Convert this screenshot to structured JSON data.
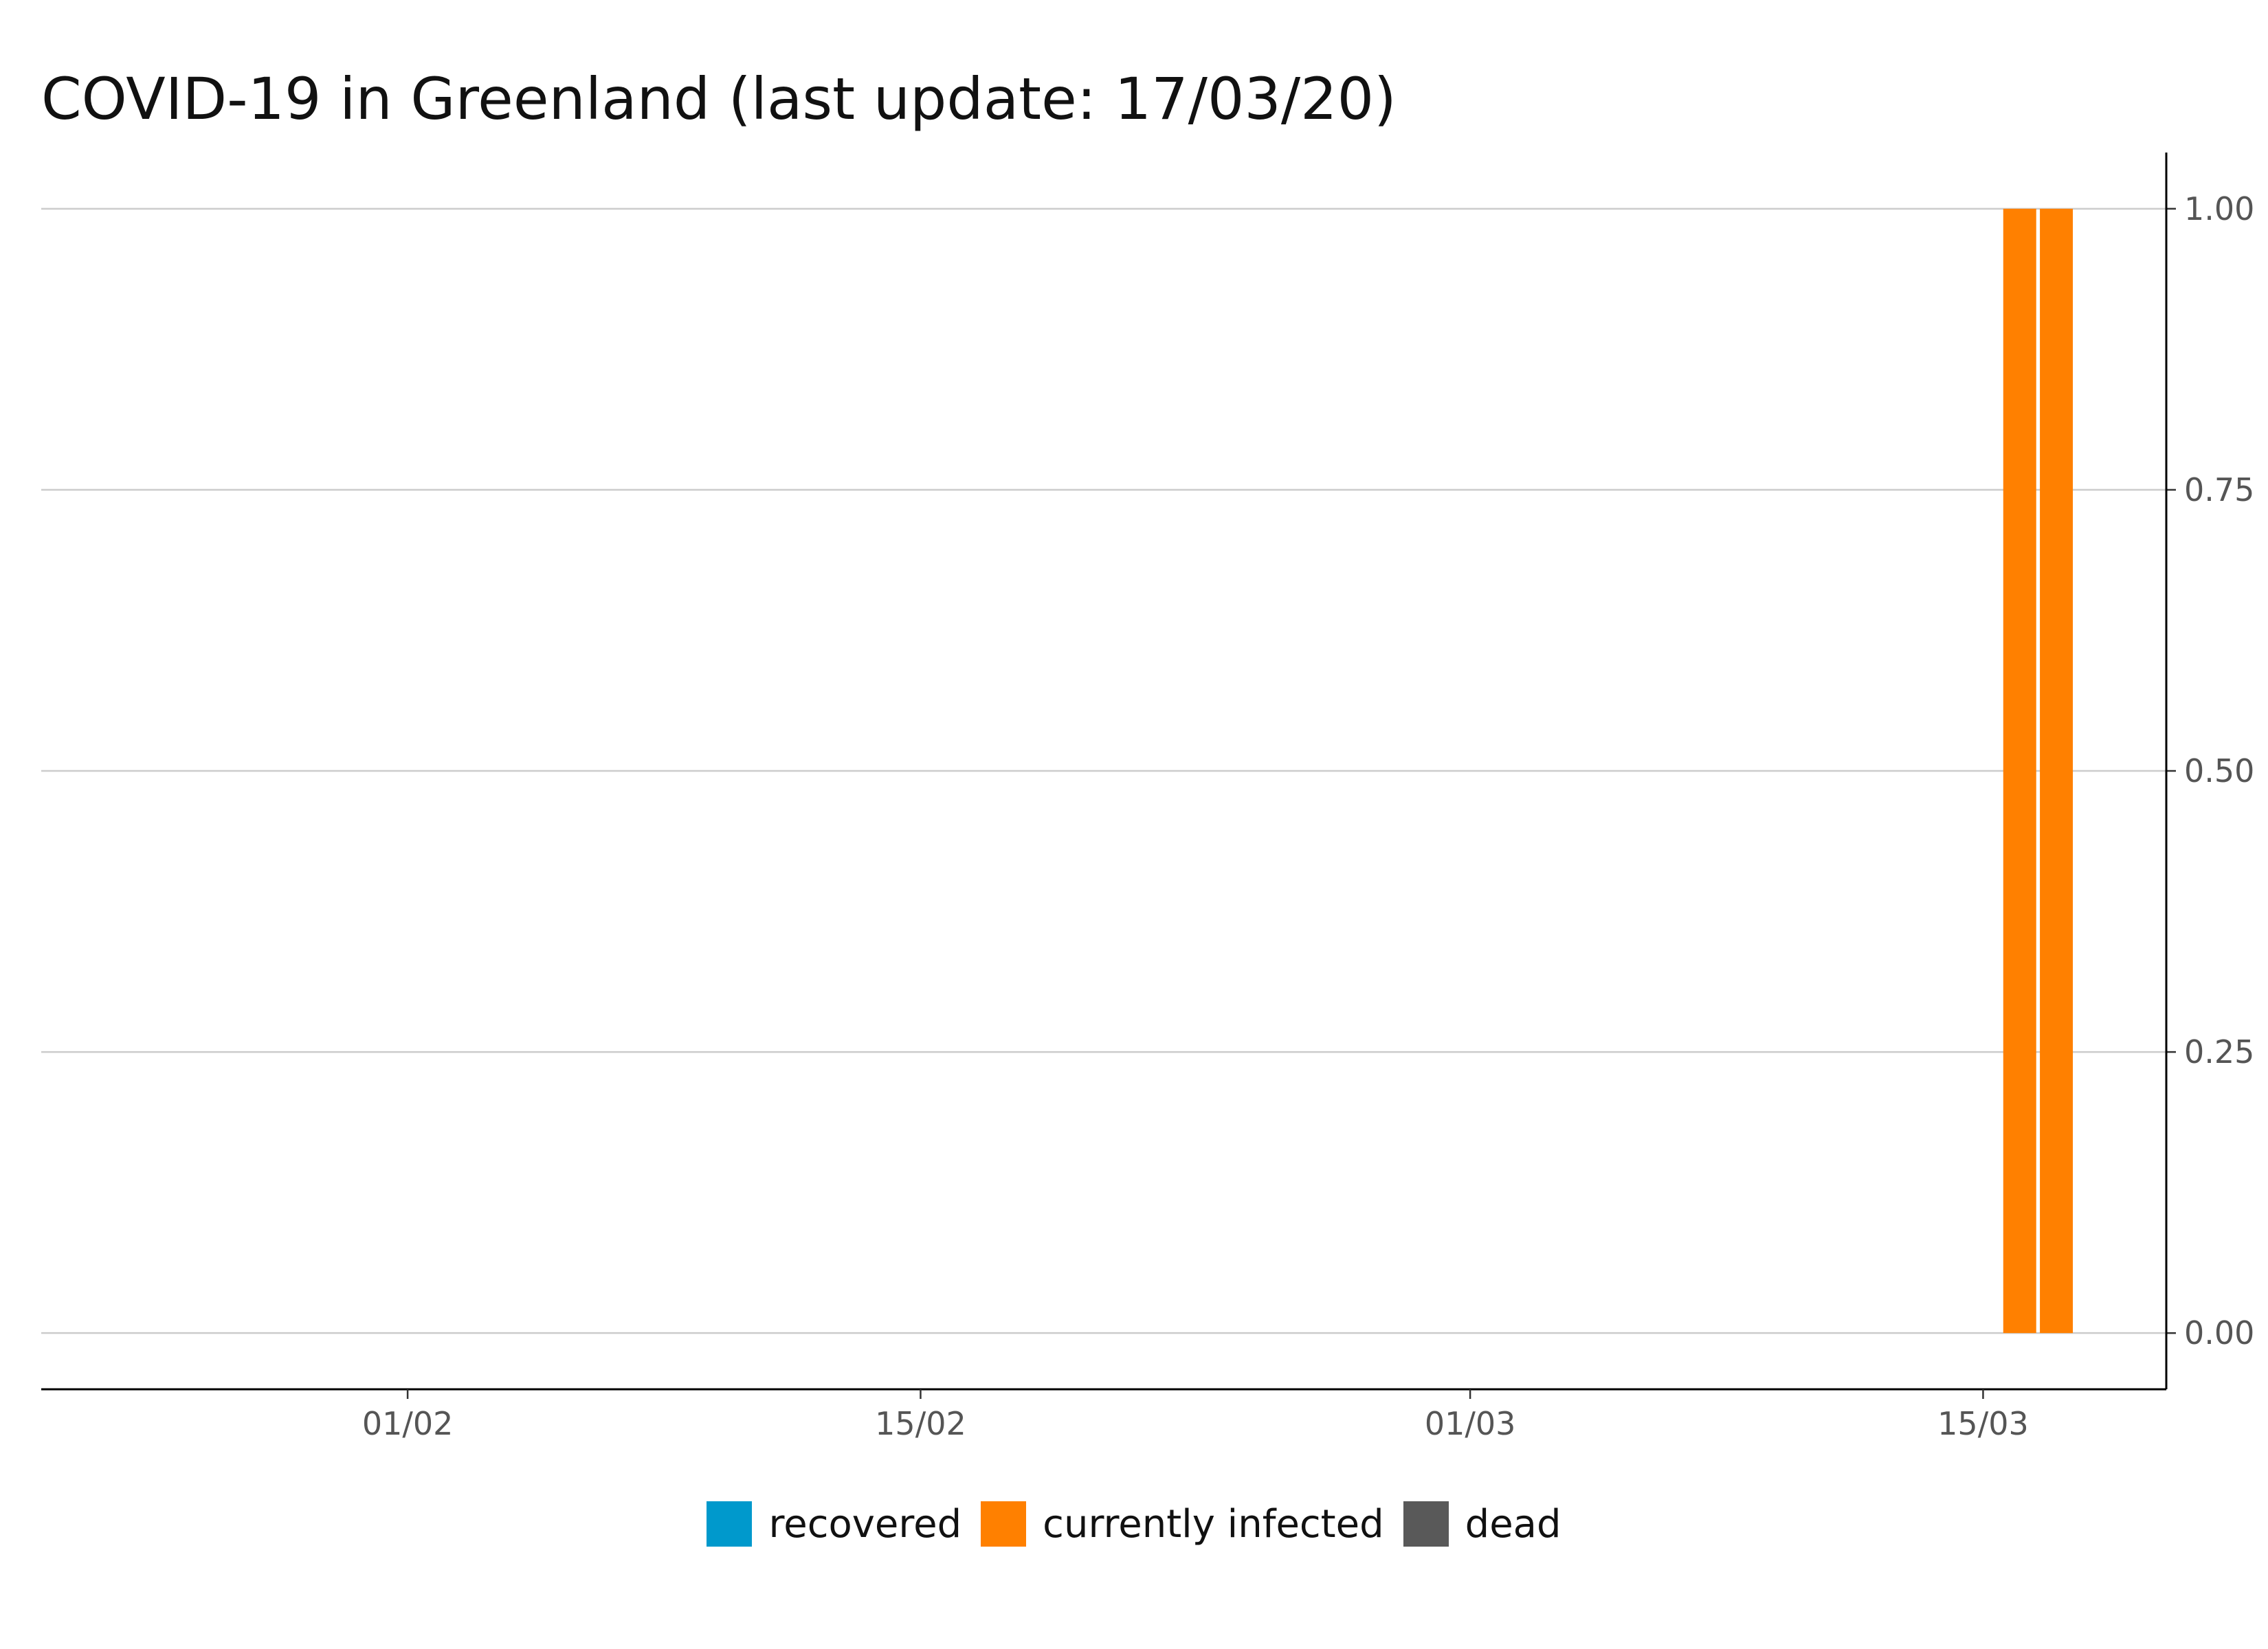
{
  "chart_data": {
    "type": "bar",
    "stacked": true,
    "title": "COVID-19 in Greenland (last update: 17/03/20)",
    "xlabel": "",
    "ylabel": "",
    "x_axis": {
      "type": "date",
      "range": [
        "2020-01-22",
        "2020-03-20"
      ],
      "ticks": [
        {
          "date": "2020-02-01",
          "label": "01/02"
        },
        {
          "date": "2020-02-15",
          "label": "15/02"
        },
        {
          "date": "2020-03-01",
          "label": "01/03"
        },
        {
          "date": "2020-03-15",
          "label": "15/03"
        }
      ]
    },
    "y_axis": {
      "position": "right",
      "range": [
        -0.05,
        1.05
      ],
      "ticks": [
        {
          "value": 0,
          "label": "0.00"
        },
        {
          "value": 0.25,
          "label": "0.25"
        },
        {
          "value": 0.5,
          "label": "0.50"
        },
        {
          "value": 0.75,
          "label": "0.75"
        },
        {
          "value": 1,
          "label": "1.00"
        }
      ]
    },
    "grid": "horizontal",
    "legend_position": "bottom",
    "series": [
      {
        "name": "recovered",
        "color": "#0099CC",
        "points": []
      },
      {
        "name": "currently infected",
        "color": "#FF8000",
        "points": [
          {
            "date": "2020-03-16",
            "value": 1
          },
          {
            "date": "2020-03-17",
            "value": 1
          }
        ]
      },
      {
        "name": "dead",
        "color": "#595959",
        "points": []
      }
    ]
  }
}
